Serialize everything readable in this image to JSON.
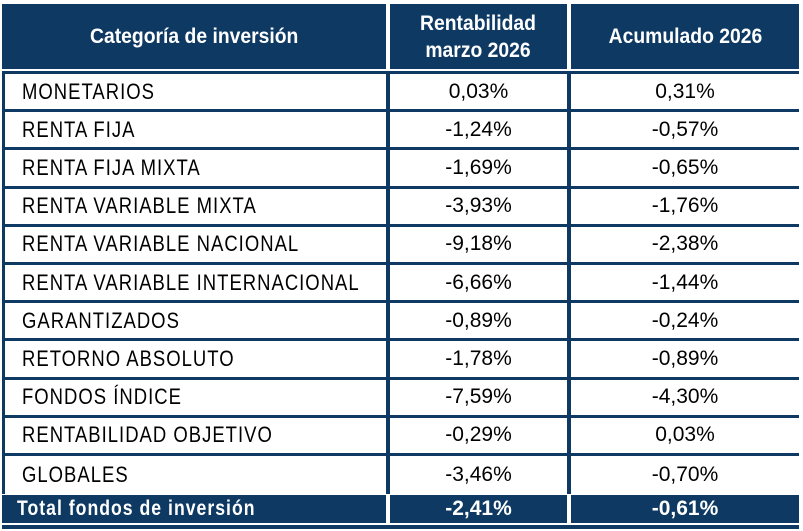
{
  "table": {
    "header": {
      "category": "Categoría de inversión",
      "monthly_line1": "Rentabilidad",
      "monthly_line2": "marzo 2026",
      "monthly_full": "Rentabilidad marzo 2026",
      "accumulated": "Acumulado 2026"
    },
    "rows": [
      {
        "category": "MONETARIOS",
        "monthly": "0,03%",
        "accumulated": "0,31%"
      },
      {
        "category": "RENTA FIJA",
        "monthly": "-1,24%",
        "accumulated": "-0,57%"
      },
      {
        "category": "RENTA FIJA MIXTA",
        "monthly": "-1,69%",
        "accumulated": "-0,65%"
      },
      {
        "category": "RENTA VARIABLE MIXTA",
        "monthly": "-3,93%",
        "accumulated": "-1,76%"
      },
      {
        "category": "RENTA VARIABLE NACIONAL",
        "monthly": "-9,18%",
        "accumulated": "-2,38%"
      },
      {
        "category": "RENTA VARIABLE INTERNACIONAL",
        "monthly": "-6,66%",
        "accumulated": "-1,44%"
      },
      {
        "category": "GARANTIZADOS",
        "monthly": "-0,89%",
        "accumulated": "-0,24%"
      },
      {
        "category": "RETORNO ABSOLUTO",
        "monthly": "-1,78%",
        "accumulated": "-0,89%"
      },
      {
        "category": "FONDOS ÍNDICE",
        "monthly": "-7,59%",
        "accumulated": "-4,30%"
      },
      {
        "category": "RENTABILIDAD OBJETIVO",
        "monthly": "-0,29%",
        "accumulated": "0,03%"
      },
      {
        "category": "GLOBALES",
        "monthly": "-3,46%",
        "accumulated": "-0,70%"
      }
    ],
    "total": {
      "label": "Total fondos de inversión",
      "monthly": "-2,41%",
      "accumulated": "-0,61%"
    }
  },
  "colors": {
    "navy": "#0E3963",
    "text": "#000000",
    "header_text": "#FFFFFF",
    "background": "#FFFFFF"
  }
}
